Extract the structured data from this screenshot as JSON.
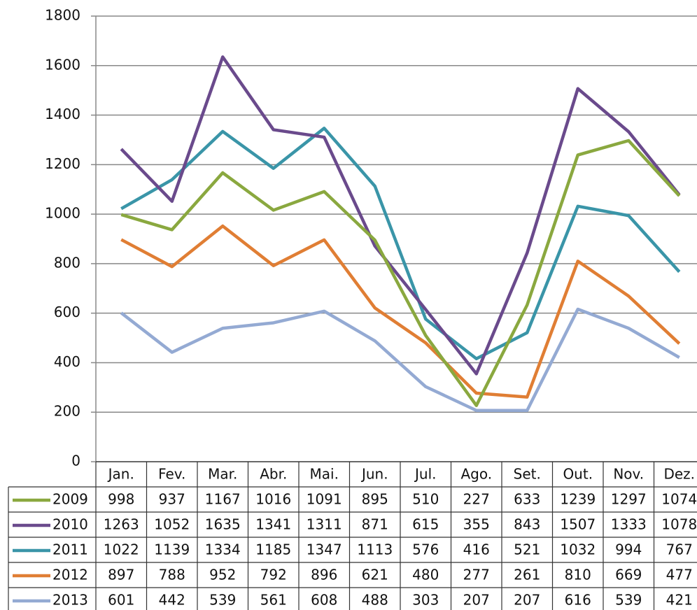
{
  "chart_data": {
    "type": "line",
    "categories": [
      "Jan.",
      "Fev.",
      "Mar.",
      "Abr.",
      "Mai.",
      "Jun.",
      "Jul.",
      "Ago.",
      "Set.",
      "Out.",
      "Nov.",
      "Dez."
    ],
    "series": [
      {
        "name": "2009",
        "color": "#8aa83f",
        "values": [
          998,
          937,
          1167,
          1016,
          1091,
          895,
          510,
          227,
          633,
          1239,
          1297,
          1074
        ]
      },
      {
        "name": "2010",
        "color": "#6a4a8c",
        "values": [
          1263,
          1052,
          1635,
          1341,
          1311,
          871,
          615,
          355,
          843,
          1507,
          1333,
          1078
        ]
      },
      {
        "name": "2011",
        "color": "#3a95a8",
        "values": [
          1022,
          1139,
          1334,
          1185,
          1347,
          1113,
          576,
          416,
          521,
          1032,
          994,
          767
        ]
      },
      {
        "name": "2012",
        "color": "#e07e34",
        "values": [
          897,
          788,
          952,
          792,
          896,
          621,
          480,
          277,
          261,
          810,
          669,
          477
        ]
      },
      {
        "name": "2013",
        "color": "#94aad3",
        "values": [
          601,
          442,
          539,
          561,
          608,
          488,
          303,
          207,
          207,
          616,
          539,
          421
        ]
      }
    ],
    "ylim": [
      0,
      1800
    ],
    "yticks": [
      0,
      200,
      400,
      600,
      800,
      1000,
      1200,
      1400,
      1600,
      1800
    ],
    "grid": true
  }
}
